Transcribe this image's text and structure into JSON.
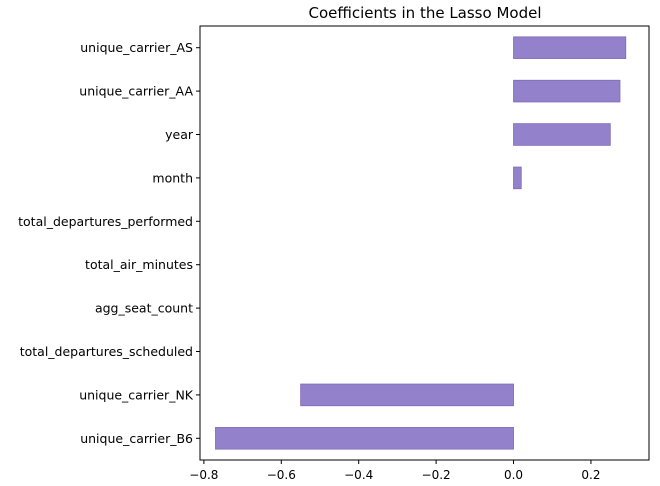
{
  "chart_data": {
    "type": "bar",
    "orientation": "horizontal",
    "title": "Coefficients in the Lasso Model",
    "xlabel": "",
    "ylabel": "",
    "categories": [
      "unique_carrier_AS",
      "unique_carrier_AA",
      "year",
      "month",
      "total_departures_performed",
      "total_air_minutes",
      "agg_seat_count",
      "total_departures_scheduled",
      "unique_carrier_NK",
      "unique_carrier_B6"
    ],
    "values": [
      0.29,
      0.275,
      0.25,
      0.02,
      0.0,
      0.0,
      0.0,
      0.0,
      -0.55,
      -0.77
    ],
    "xlim": [
      -0.81,
      0.35
    ],
    "xticks": [
      -0.8,
      -0.6,
      -0.4,
      -0.2,
      0.0,
      0.2
    ],
    "xtick_labels": [
      "−0.8",
      "−0.6",
      "−0.4",
      "−0.2",
      "0.0",
      "0.2"
    ],
    "bar_color": "#9481cb",
    "bar_edge_color": "#7d6ab8",
    "grid": false,
    "legend": "none"
  }
}
